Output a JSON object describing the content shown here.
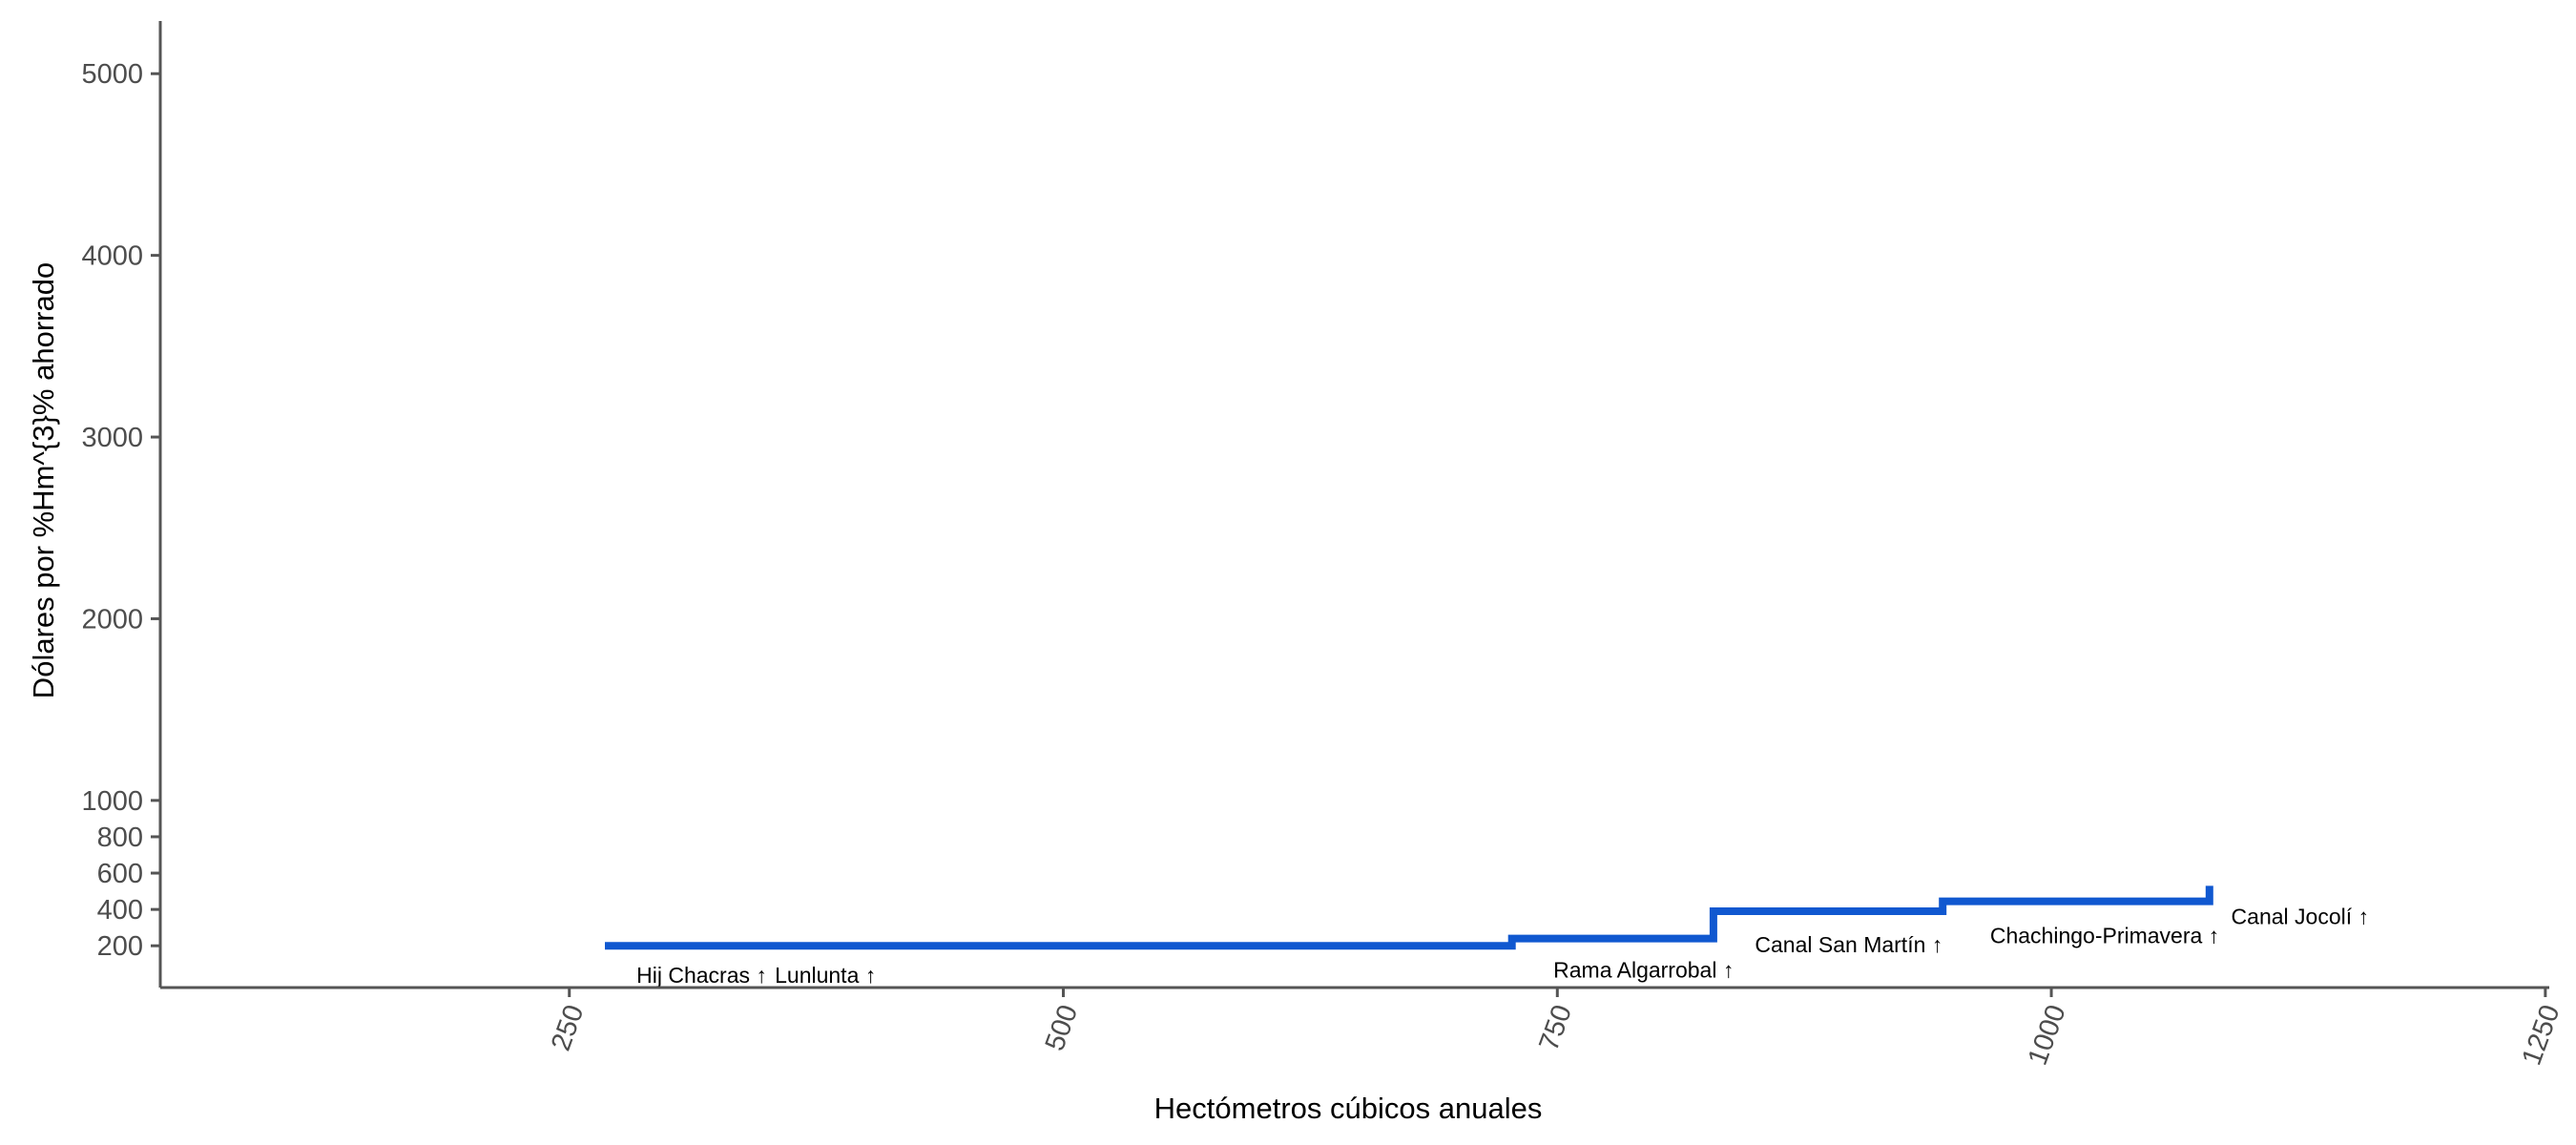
{
  "chart_data": {
    "type": "line",
    "xlabel": "Hectómetros cúbicos anuales",
    "ylabel": "Dólares por %Hm^{3}% ahorrado",
    "xlim": [
      43,
      1252
    ],
    "ylim": [
      -30,
      5290
    ],
    "x_ticks": [
      250,
      500,
      750,
      1000,
      1250
    ],
    "x_tick_labels": [
      "250",
      "500",
      "750",
      "1000",
      "1250"
    ],
    "y_ticks": [
      200,
      400,
      600,
      800,
      1000,
      2000,
      3000,
      4000,
      5000
    ],
    "y_tick_labels": [
      "200",
      "400",
      "600",
      "800",
      "1000",
      "2000",
      "3000",
      "4000",
      "5000"
    ],
    "grid": false,
    "series": [
      {
        "color": "#1058d0",
        "step_points": [
          {
            "x": 268,
            "y": 200
          },
          {
            "x": 727,
            "y": 200
          },
          {
            "x": 727,
            "y": 240
          },
          {
            "x": 829,
            "y": 240
          },
          {
            "x": 829,
            "y": 390
          },
          {
            "x": 945,
            "y": 390
          },
          {
            "x": 945,
            "y": 445
          },
          {
            "x": 1080,
            "y": 445
          },
          {
            "x": 1080,
            "y": 530
          }
        ]
      }
    ],
    "annotations": [
      {
        "text": "Hij Chacras ↑",
        "x": 284,
        "y": -5
      },
      {
        "text": "Lunlunta ↑",
        "x": 354,
        "y": -5
      },
      {
        "text": "Rama Algarrobal ↑",
        "x": 748,
        "y": 25
      },
      {
        "text": "Canal San Martín ↑",
        "x": 850,
        "y": 165
      },
      {
        "text": "Chachingo-Primavera ↑",
        "x": 969,
        "y": 215
      },
      {
        "text": "Canal Jocolí ↑",
        "x": 1091,
        "y": 320
      }
    ]
  }
}
